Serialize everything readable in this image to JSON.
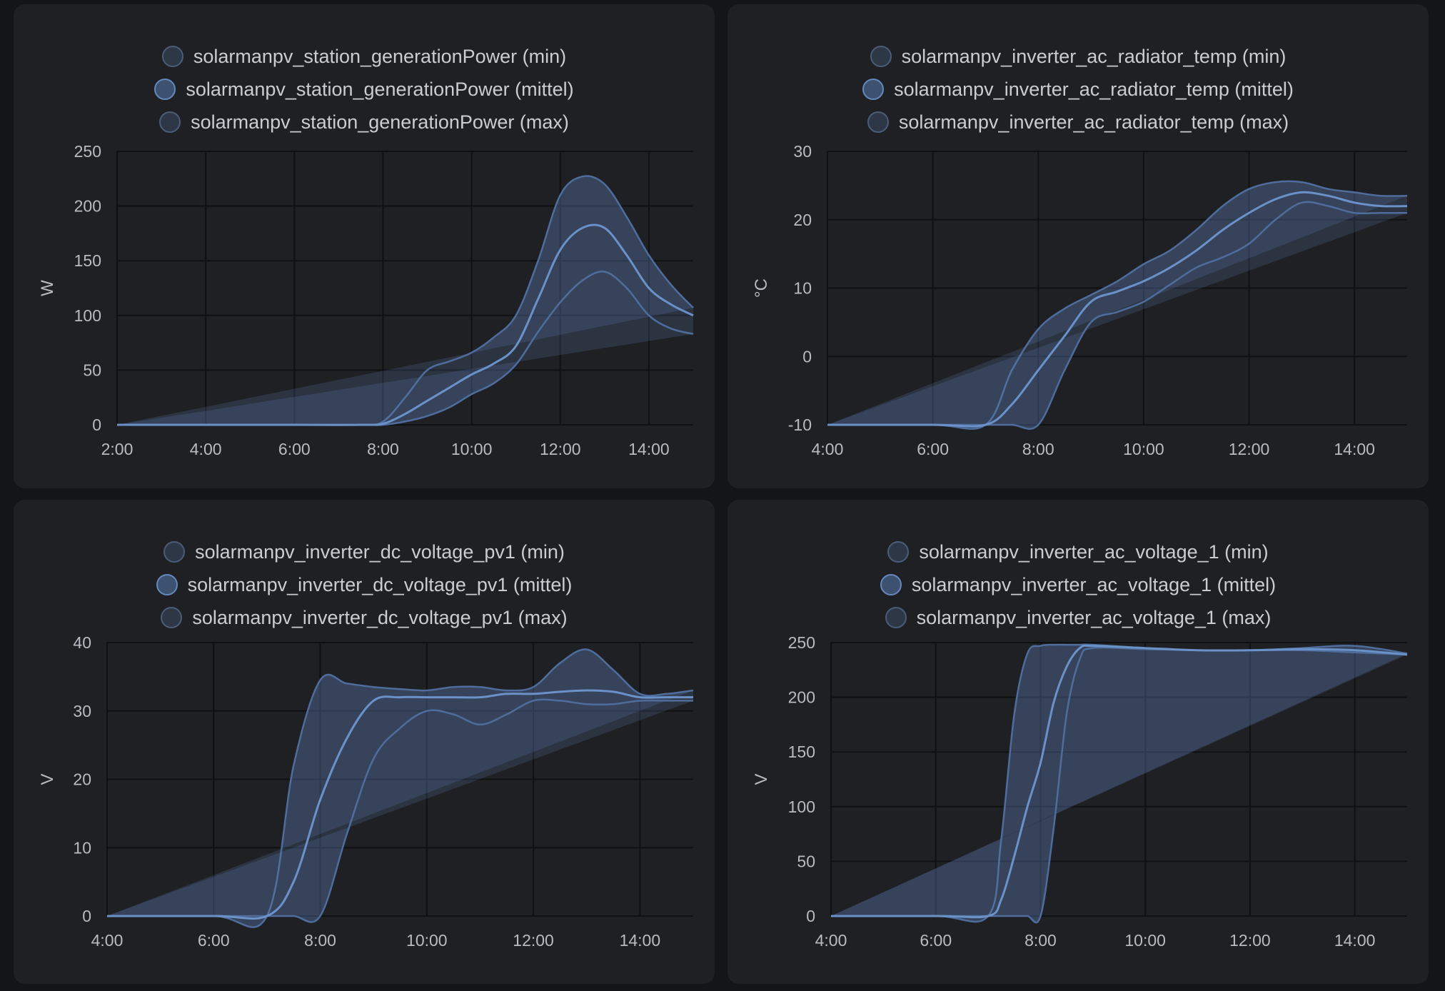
{
  "colors": {
    "background": "#141517",
    "card": "#1f2023",
    "series_line": "#6a91c8",
    "band_fill": "#5a7ab0",
    "band_edge": "#4f6d9c",
    "grid": "#0f1012"
  },
  "chart_data": [
    {
      "type": "area",
      "legend": [
        "solarmanpv_station_generationPower (min)",
        "solarmanpv_station_generationPower (mittel)",
        "solarmanpv_station_generationPower (max)"
      ],
      "ylabel": "W",
      "xlabel": "",
      "x_ticks": [
        "2:00",
        "4:00",
        "6:00",
        "8:00",
        "10:00",
        "12:00",
        "14:00"
      ],
      "y_ticks": [
        "0",
        "50",
        "100",
        "150",
        "200",
        "250"
      ],
      "xlim": [
        "2:00",
        "15:00"
      ],
      "ylim": [
        0,
        250
      ],
      "grid": true,
      "legend_position": "top-center",
      "x": [
        "2:00",
        "4:00",
        "6:00",
        "7:30",
        "8:00",
        "8:30",
        "9:00",
        "9:30",
        "10:00",
        "10:30",
        "11:00",
        "11:30",
        "12:00",
        "12:30",
        "13:00",
        "13:30",
        "14:00",
        "14:30",
        "15:00"
      ],
      "series": [
        {
          "name": "solarmanpv_station_generationPower (min)",
          "values": [
            0,
            0,
            0,
            0,
            0,
            3,
            8,
            16,
            28,
            38,
            55,
            85,
            112,
            132,
            140,
            125,
            100,
            88,
            83
          ]
        },
        {
          "name": "solarmanpv_station_generationPower (mittel)",
          "values": [
            0,
            0,
            0,
            0,
            1,
            10,
            22,
            34,
            46,
            56,
            72,
            115,
            160,
            180,
            180,
            155,
            125,
            110,
            100
          ]
        },
        {
          "name": "solarmanpv_station_generationPower (max)",
          "values": [
            0,
            0,
            0,
            0,
            3,
            25,
            50,
            58,
            66,
            80,
            100,
            150,
            210,
            227,
            220,
            190,
            155,
            128,
            107
          ]
        }
      ]
    },
    {
      "type": "area",
      "legend": [
        "solarmanpv_inverter_ac_radiator_temp (min)",
        "solarmanpv_inverter_ac_radiator_temp (mittel)",
        "solarmanpv_inverter_ac_radiator_temp (max)"
      ],
      "ylabel": "°C",
      "xlabel": "",
      "x_ticks": [
        "4:00",
        "6:00",
        "8:00",
        "10:00",
        "12:00",
        "14:00"
      ],
      "y_ticks": [
        "-10",
        "0",
        "10",
        "20",
        "30"
      ],
      "xlim": [
        "4:00",
        "15:00"
      ],
      "ylim": [
        -10,
        30
      ],
      "grid": true,
      "legend_position": "top-center",
      "x": [
        "4:00",
        "6:00",
        "7:00",
        "7:30",
        "8:00",
        "8:30",
        "9:00",
        "9:30",
        "10:00",
        "10:30",
        "11:00",
        "11:30",
        "12:00",
        "12:30",
        "13:00",
        "13:30",
        "14:00",
        "14:30",
        "15:00"
      ],
      "series": [
        {
          "name": "solarmanpv_inverter_ac_radiator_temp (min)",
          "values": [
            -10,
            -10,
            -10,
            -10,
            -10,
            -2,
            5,
            6.5,
            8,
            10.5,
            13,
            14.5,
            16.5,
            20,
            22.5,
            22,
            21,
            21,
            21
          ]
        },
        {
          "name": "solarmanpv_inverter_ac_radiator_temp (mittel)",
          "values": [
            -10,
            -10,
            -10,
            -7,
            -2,
            3,
            8,
            9.5,
            11,
            13,
            15.5,
            18.5,
            21,
            23,
            24,
            23.5,
            22.5,
            22,
            22
          ]
        },
        {
          "name": "solarmanpv_inverter_ac_radiator_temp (max)",
          "values": [
            -10,
            -10,
            -10,
            -2,
            4,
            7,
            9,
            11,
            13.5,
            15.5,
            18.5,
            22,
            24.5,
            25.5,
            25.5,
            24.5,
            24,
            23.5,
            23.5
          ]
        }
      ]
    },
    {
      "type": "area",
      "legend": [
        "solarmanpv_inverter_dc_voltage_pv1 (min)",
        "solarmanpv_inverter_dc_voltage_pv1 (mittel)",
        "solarmanpv_inverter_dc_voltage_pv1 (max)"
      ],
      "ylabel": "V",
      "xlabel": "",
      "x_ticks": [
        "4:00",
        "6:00",
        "8:00",
        "10:00",
        "12:00",
        "14:00"
      ],
      "y_ticks": [
        "0",
        "10",
        "20",
        "30",
        "40"
      ],
      "xlim": [
        "4:00",
        "15:00"
      ],
      "ylim": [
        0,
        40
      ],
      "grid": true,
      "legend_position": "top-center",
      "x": [
        "4:00",
        "6:00",
        "7:00",
        "7:30",
        "8:00",
        "8:30",
        "9:00",
        "9:30",
        "10:00",
        "10:30",
        "11:00",
        "11:30",
        "12:00",
        "12:30",
        "13:00",
        "13:30",
        "14:00",
        "14:30",
        "15:00"
      ],
      "series": [
        {
          "name": "solarmanpv_inverter_dc_voltage_pv1 (min)",
          "values": [
            0,
            0,
            0,
            0,
            0,
            12,
            23,
            27.5,
            30,
            29.5,
            28,
            29.5,
            31.5,
            31.5,
            31,
            31,
            31.5,
            31.5,
            31.5
          ]
        },
        {
          "name": "solarmanpv_inverter_dc_voltage_pv1 (mittel)",
          "values": [
            0,
            0,
            0,
            5,
            17,
            26,
            31.5,
            32,
            32,
            32,
            32,
            32.5,
            32.5,
            32.8,
            33,
            32.8,
            32,
            32,
            32
          ]
        },
        {
          "name": "solarmanpv_inverter_dc_voltage_pv1 (max)",
          "values": [
            0,
            0,
            0,
            22,
            34.5,
            34,
            33.5,
            33.2,
            33,
            33.5,
            33.5,
            33,
            33.5,
            37,
            39,
            36,
            32.5,
            32.5,
            33
          ]
        }
      ]
    },
    {
      "type": "area",
      "legend": [
        "solarmanpv_inverter_ac_voltage_1 (min)",
        "solarmanpv_inverter_ac_voltage_1 (mittel)",
        "solarmanpv_inverter_ac_voltage_1 (max)"
      ],
      "ylabel": "V",
      "xlabel": "",
      "x_ticks": [
        "4:00",
        "6:00",
        "8:00",
        "10:00",
        "12:00",
        "14:00"
      ],
      "y_ticks": [
        "0",
        "50",
        "100",
        "150",
        "200",
        "250"
      ],
      "xlim": [
        "4:00",
        "15:00"
      ],
      "ylim": [
        0,
        250
      ],
      "grid": true,
      "legend_position": "top-center",
      "x": [
        "4:00",
        "6:00",
        "7:00",
        "7:15",
        "7:30",
        "7:45",
        "8:00",
        "8:15",
        "8:30",
        "8:45",
        "9:00",
        "10:00",
        "11:00",
        "12:00",
        "13:00",
        "14:00",
        "15:00"
      ],
      "series": [
        {
          "name": "solarmanpv_inverter_ac_voltage_1 (min)",
          "values": [
            0,
            0,
            0,
            0,
            0,
            0,
            0,
            80,
            185,
            235,
            245,
            244,
            243,
            243,
            243,
            241,
            239
          ]
        },
        {
          "name": "solarmanpv_inverter_ac_voltage_1 (mittel)",
          "values": [
            0,
            0,
            0,
            15,
            55,
            100,
            140,
            195,
            228,
            245,
            247,
            245,
            243,
            243,
            244,
            243,
            239
          ]
        },
        {
          "name": "solarmanpv_inverter_ac_voltage_1 (max)",
          "values": [
            0,
            0,
            0,
            70,
            185,
            240,
            247,
            248,
            248,
            248,
            248,
            245,
            243,
            243,
            245,
            247,
            240
          ]
        }
      ]
    }
  ]
}
